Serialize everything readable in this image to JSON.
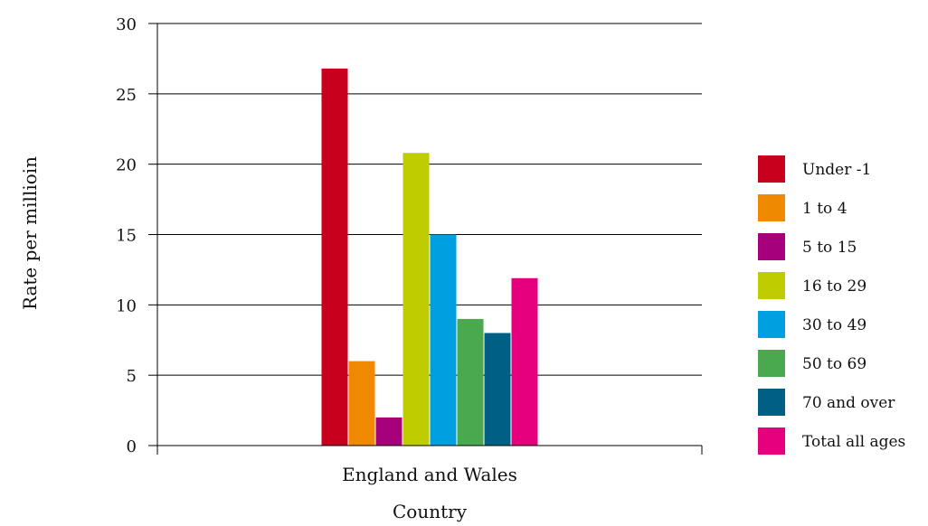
{
  "chart_data": {
    "type": "bar",
    "categories": [
      "England and Wales"
    ],
    "series": [
      {
        "name": "Under -1",
        "values": [
          26.8
        ],
        "color": "#c8001e"
      },
      {
        "name": "1 to 4",
        "values": [
          6
        ],
        "color": "#ef8a00"
      },
      {
        "name": "5 to 15",
        "values": [
          2
        ],
        "color": "#a6007d"
      },
      {
        "name": "16 to 29",
        "values": [
          20.8
        ],
        "color": "#bfcc00"
      },
      {
        "name": "30 to 49",
        "values": [
          15
        ],
        "color": "#009fe0"
      },
      {
        "name": "50 to 69",
        "values": [
          9
        ],
        "color": "#4aa84e"
      },
      {
        "name": "70 and over",
        "values": [
          8
        ],
        "color": "#005f84"
      },
      {
        "name": "Total all ages",
        "values": [
          11.9
        ],
        "color": "#e6007e"
      }
    ],
    "xlabel": "Country",
    "ylabel": "Rate per millioin",
    "ylim": [
      0,
      30
    ],
    "yticks": [
      "0",
      "5",
      "10",
      "15",
      "20",
      "25",
      "30"
    ],
    "grid": true,
    "legend_position": "right"
  }
}
